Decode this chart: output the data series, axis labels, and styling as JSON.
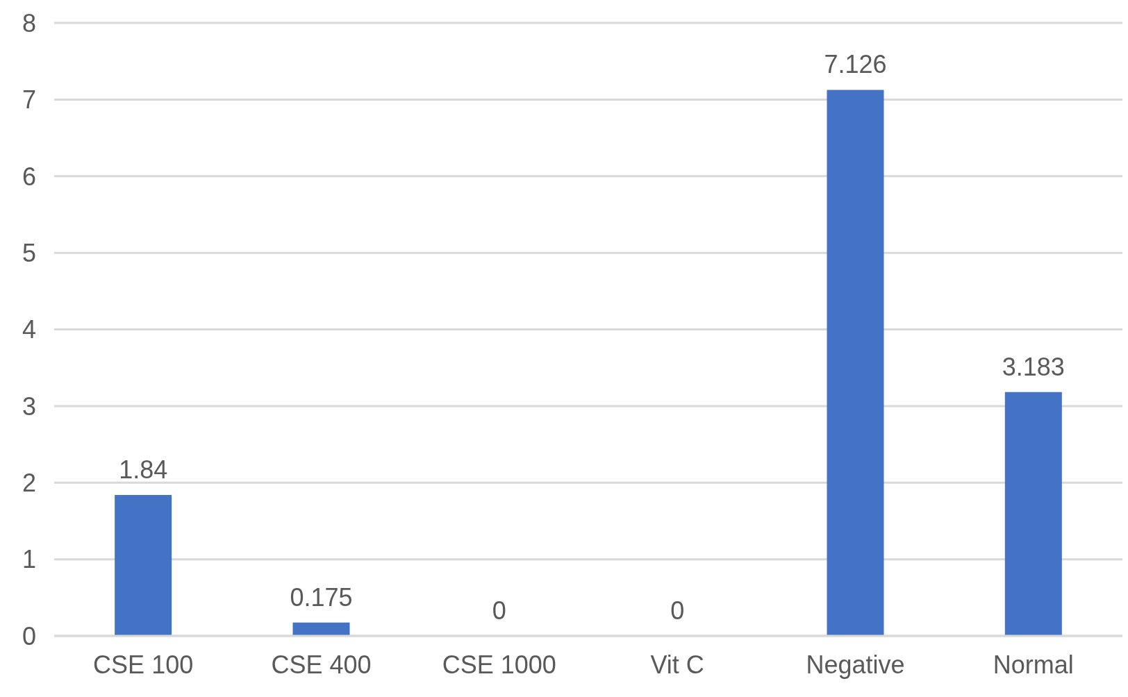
{
  "chart_data": {
    "type": "bar",
    "categories": [
      "CSE 100",
      "CSE 400",
      "CSE 1000",
      "Vit C",
      "Negative",
      "Normal"
    ],
    "values": [
      1.84,
      0.175,
      0,
      0,
      7.126,
      3.183
    ],
    "color": "#4472c4",
    "ylim": [
      0,
      8
    ],
    "yticks": [
      0,
      1,
      2,
      3,
      4,
      5,
      6,
      7,
      8
    ],
    "grid": "y",
    "data_labels": true
  }
}
